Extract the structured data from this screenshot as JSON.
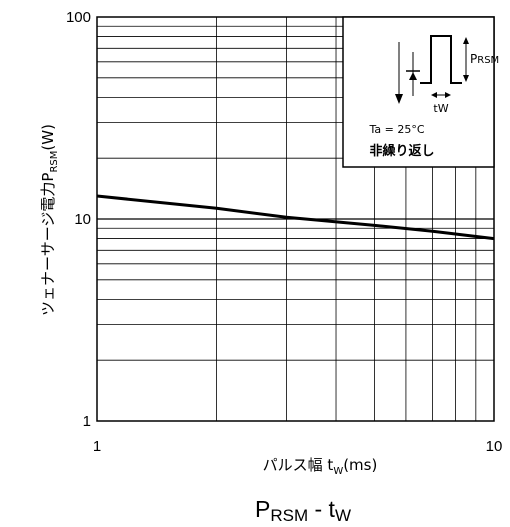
{
  "chart_data": {
    "type": "line",
    "title": "",
    "caption": {
      "main": "P",
      "sub": "RSM",
      "sep": " - t",
      "sub2": "W"
    },
    "xlabel": {
      "main": "パルス幅  t",
      "sub": "W",
      "tail": "(ms)"
    },
    "ylabel": {
      "main": "ツェナーサージ電力P",
      "sub": "RSM",
      "tail": "(W)"
    },
    "x_scale": "log",
    "y_scale": "log",
    "xlim": [
      1,
      10
    ],
    "ylim": [
      1,
      100
    ],
    "x_ticks": [
      "1",
      "10"
    ],
    "y_ticks": [
      "1",
      "10",
      "100"
    ],
    "grid": true,
    "series": [
      {
        "x": [
          1,
          2,
          3,
          5,
          7,
          10
        ],
        "y": [
          13,
          11.3,
          10.2,
          9.3,
          8.7,
          8.0
        ]
      }
    ],
    "inset": {
      "pulse_label": {
        "main": "P",
        "sub": "RSM"
      },
      "width_label": "tW",
      "ta_label": "Ta = 25°C",
      "note": "非繰り返し"
    }
  }
}
